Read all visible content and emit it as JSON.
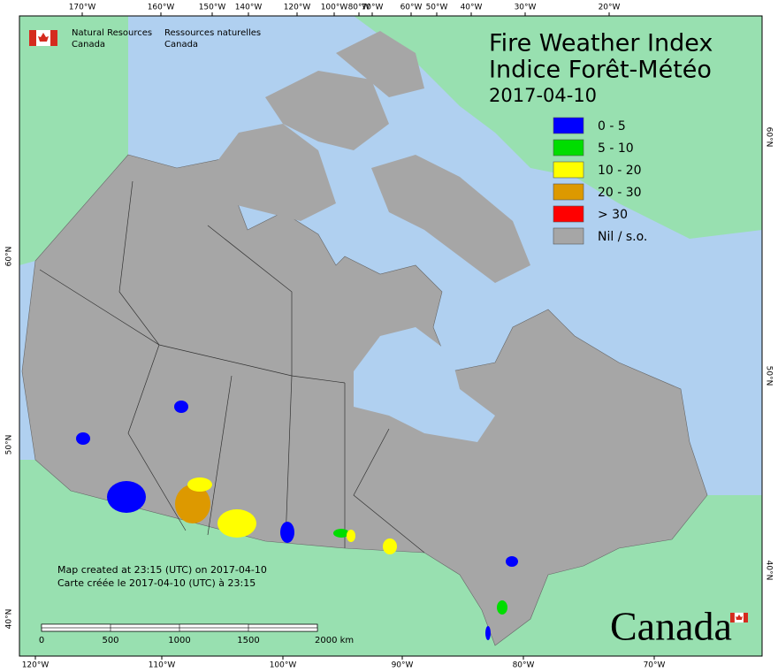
{
  "header": {
    "org_en": [
      "Natural Resources",
      "Canada"
    ],
    "org_fr": [
      "Ressources naturelles",
      "Canada"
    ]
  },
  "title": [
    "Fire Weather Index",
    "Indice Forêt-Météo"
  ],
  "date": "2017-04-10",
  "legend": [
    {
      "label": "0 - 5",
      "color": "#0000ff"
    },
    {
      "label": "5 - 10",
      "color": "#00dd00"
    },
    {
      "label": "10 - 20",
      "color": "#ffff00"
    },
    {
      "label": "20 - 30",
      "color": "#dd9900"
    },
    {
      "label": "> 30",
      "color": "#ff0000"
    },
    {
      "label": "Nil / s.o.",
      "color": "#a6a6a6"
    }
  ],
  "top_labels": [
    "170°W",
    "160°W",
    "150°W",
    "140°W",
    "120°W",
    "100°W",
    "80°W",
    "70°W",
    "60°W",
    "50°W",
    "40°W",
    "30°W",
    "20°W"
  ],
  "bottom_labels": [
    "120°W",
    "110°W",
    "100°W",
    "90°W",
    "80°W",
    "70°W"
  ],
  "left_labels": [
    "60°N",
    "50°N",
    "40°N"
  ],
  "right_labels": [
    "60°N",
    "50°N",
    "40°N"
  ],
  "notes": [
    "Map created at 23:15 (UTC) on 2017-04-10",
    "Carte créée le 2017-04-10 (UTC) à 23:15"
  ],
  "scale_labels": [
    "0",
    "500",
    "1000",
    "1500",
    "2000 km"
  ],
  "wordmark": "Canada"
}
